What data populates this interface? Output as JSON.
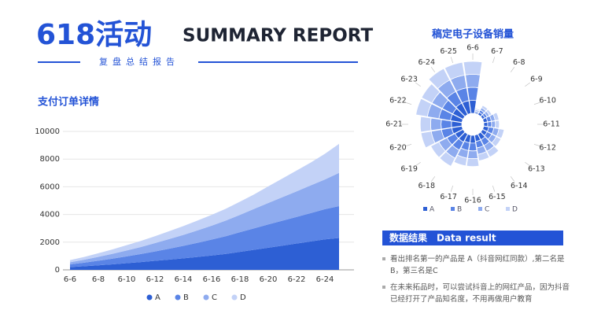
{
  "header": {
    "title": "618活动",
    "subtitle": "SUMMARY REPORT",
    "tagline": "复盘总结报告"
  },
  "result": {
    "title": "数据结果",
    "title_en": "Data result",
    "points": [
      "看出排名第一的产品是 A（抖音网红同款）,第二名是 B，第三名是C",
      "在未来拓品时，可以尝试抖音上的网红产品，因为抖音已经打开了产品知名度，不用再做用户教育"
    ]
  },
  "chart_data": [
    {
      "type": "stacked-area",
      "title": "支付订单详情",
      "categories": [
        "6-6",
        null,
        "6-8",
        null,
        "6-10",
        null,
        "6-12",
        null,
        "6-14",
        null,
        "6-16",
        null,
        "6-18",
        null,
        "6-20",
        null,
        "6-22",
        null,
        "6-24",
        null
      ],
      "series": [
        {
          "name": "A",
          "color": "#2d5fd4",
          "values": [
            200,
            260,
            330,
            400,
            480,
            560,
            650,
            740,
            830,
            930,
            1040,
            1150,
            1300,
            1450,
            1600,
            1750,
            1900,
            2050,
            2200,
            2300
          ]
        },
        {
          "name": "B",
          "color": "#5a84e6",
          "values": [
            200,
            260,
            330,
            410,
            490,
            580,
            680,
            790,
            900,
            1020,
            1150,
            1280,
            1420,
            1550,
            1680,
            1800,
            1920,
            2050,
            2180,
            2300
          ]
        },
        {
          "name": "C",
          "color": "#8eabef",
          "values": [
            150,
            210,
            280,
            350,
            430,
            510,
            600,
            690,
            790,
            900,
            1000,
            1130,
            1250,
            1400,
            1550,
            1700,
            1850,
            2000,
            2150,
            2400
          ]
        },
        {
          "name": "D",
          "color": "#c3d2f7",
          "values": [
            150,
            200,
            260,
            320,
            380,
            440,
            500,
            570,
            640,
            710,
            780,
            850,
            950,
            1050,
            1200,
            1350,
            1500,
            1650,
            1850,
            2100
          ]
        }
      ],
      "ylim": [
        0,
        10000
      ],
      "yticks": [
        0,
        2000,
        4000,
        6000,
        8000,
        10000
      ],
      "grid": true
    },
    {
      "type": "polar-stacked-bar",
      "title": "稿定电子设备销量",
      "categories": [
        "6-6",
        "6-7",
        "6-8",
        "6-9",
        "6-10",
        "6-11",
        "6-12",
        "6-13",
        "6-14",
        "6-15",
        "6-16",
        "6-17",
        "6-18",
        "6-19",
        "6-20",
        "6-21",
        "6-22",
        "6-23",
        "6-24",
        "6-25"
      ],
      "series": [
        {
          "name": "A",
          "color": "#2d5fd4",
          "values": [
            10,
            1,
            2,
            2,
            3,
            3,
            4,
            4,
            5,
            5,
            6,
            6,
            7,
            7,
            8,
            8,
            9,
            9,
            10,
            10
          ]
        },
        {
          "name": "B",
          "color": "#5a84e6",
          "values": [
            10,
            1,
            2,
            2,
            3,
            3,
            4,
            4,
            5,
            5,
            6,
            6,
            7,
            7,
            8,
            8,
            9,
            9,
            10,
            10
          ]
        },
        {
          "name": "C",
          "color": "#8eabef",
          "values": [
            10,
            1,
            2,
            2,
            3,
            3,
            4,
            4,
            5,
            5,
            6,
            6,
            7,
            7,
            8,
            8,
            9,
            9,
            10,
            10
          ]
        },
        {
          "name": "D",
          "color": "#c3d2f7",
          "values": [
            10,
            1,
            2,
            2,
            3,
            3,
            4,
            4,
            5,
            5,
            6,
            6,
            7,
            7,
            8,
            8,
            9,
            9,
            10,
            10
          ]
        }
      ],
      "rlim": [
        0,
        40
      ]
    }
  ]
}
